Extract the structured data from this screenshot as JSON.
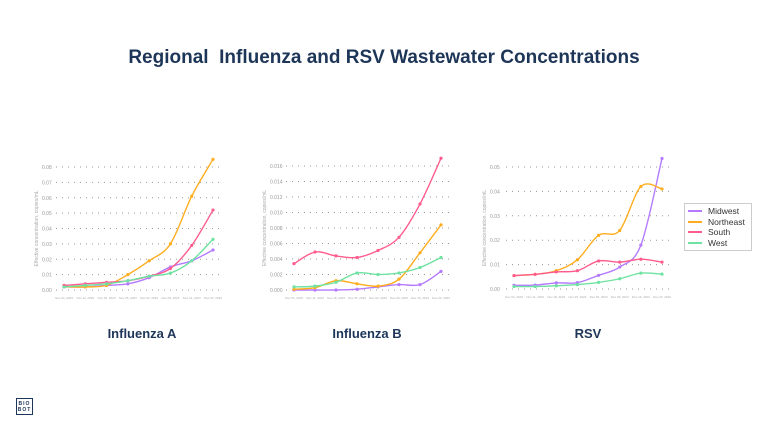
{
  "title": "Regional  Influenza and RSV Wastewater Concentrations",
  "logo": "BIO BOT",
  "legend": [
    {
      "name": "Midwest",
      "color": "#b57bff"
    },
    {
      "name": "Northeast",
      "color": "#ffad1f"
    },
    {
      "name": "South",
      "color": "#ff5c8d"
    },
    {
      "name": "West",
      "color": "#6ee2a0"
    }
  ],
  "chart_data": [
    {
      "type": "line",
      "title": "Influenza A",
      "ylabel": "Effective concentration, copies/mL",
      "xlabel": "",
      "x": [
        "Nov 04, 2023",
        "Nov 11, 2023",
        "Nov 18, 2023",
        "Nov 25, 2023",
        "Dec 02, 2023",
        "Dec 09, 2023",
        "Dec 16, 2023",
        "Dec 23, 2023"
      ],
      "yticks": [
        "0.00",
        "0.01",
        "0.02",
        "0.03",
        "0.04",
        "0.05",
        "0.06",
        "0.07",
        "0.08"
      ],
      "ylim": [
        0,
        0.08
      ],
      "grid": "horizontal dotted",
      "series": [
        {
          "name": "Midwest",
          "values": [
            0.002,
            0.002,
            0.003,
            0.004,
            0.008,
            0.015,
            0.019,
            0.026
          ]
        },
        {
          "name": "Northeast",
          "values": [
            0.002,
            0.002,
            0.003,
            0.01,
            0.019,
            0.03,
            0.061,
            0.085
          ]
        },
        {
          "name": "South",
          "values": [
            0.003,
            0.004,
            0.005,
            0.006,
            0.009,
            0.014,
            0.029,
            0.052
          ]
        },
        {
          "name": "West",
          "values": [
            0.002,
            0.003,
            0.004,
            0.006,
            0.009,
            0.011,
            0.019,
            0.033
          ]
        }
      ]
    },
    {
      "type": "line",
      "title": "Influenza B",
      "ylabel": "Effective concentration, copies/mL",
      "xlabel": "",
      "x": [
        "Nov 04, 2023",
        "Nov 11, 2023",
        "Nov 18, 2023",
        "Nov 25, 2023",
        "Dec 02, 2023",
        "Dec 09, 2023",
        "Dec 16, 2023",
        "Dec 23, 2023"
      ],
      "yticks": [
        "0.000",
        "0.002",
        "0.004",
        "0.006",
        "0.008",
        "0.010",
        "0.012",
        "0.014",
        "0.016"
      ],
      "ylim": [
        0,
        0.016
      ],
      "grid": "horizontal dotted",
      "series": [
        {
          "name": "Midwest",
          "values": [
            0.0,
            0.0,
            0.0,
            0.0001,
            0.0004,
            0.0007,
            0.0007,
            0.0024
          ]
        },
        {
          "name": "Northeast",
          "values": [
            0.0001,
            0.0003,
            0.0012,
            0.0008,
            0.0005,
            0.0014,
            0.0048,
            0.0084
          ]
        },
        {
          "name": "South",
          "values": [
            0.0034,
            0.0049,
            0.0044,
            0.0042,
            0.0051,
            0.0068,
            0.0111,
            0.017
          ]
        },
        {
          "name": "West",
          "values": [
            0.0004,
            0.0005,
            0.001,
            0.0022,
            0.002,
            0.0022,
            0.0029,
            0.0042
          ]
        }
      ]
    },
    {
      "type": "line",
      "title": "RSV",
      "ylabel": "Effective concentration, copies/mL",
      "xlabel": "",
      "x": [
        "Nov 04, 2023",
        "Nov 11, 2023",
        "Nov 18, 2023",
        "Nov 25, 2023",
        "Dec 02, 2023",
        "Dec 09, 2023",
        "Dec 16, 2023",
        "Dec 23, 2023"
      ],
      "yticks": [
        "0.00",
        "0.01",
        "0.02",
        "0.03",
        "0.04",
        "0.05"
      ],
      "ylim": [
        0,
        0.05
      ],
      "grid": "horizontal dotted",
      "legend": "right",
      "series": [
        {
          "name": "Midwest",
          "values": [
            0.0015,
            0.0016,
            0.0025,
            0.0026,
            0.0056,
            0.009,
            0.018,
            0.0535
          ]
        },
        {
          "name": "Northeast",
          "values": [
            0.0055,
            0.006,
            0.0075,
            0.012,
            0.022,
            0.024,
            0.042,
            0.041
          ]
        },
        {
          "name": "South",
          "values": [
            0.0055,
            0.006,
            0.007,
            0.0075,
            0.0115,
            0.011,
            0.0122,
            0.011
          ]
        },
        {
          "name": "West",
          "values": [
            0.001,
            0.001,
            0.0013,
            0.0018,
            0.0027,
            0.0042,
            0.0065,
            0.0061
          ]
        }
      ]
    }
  ]
}
